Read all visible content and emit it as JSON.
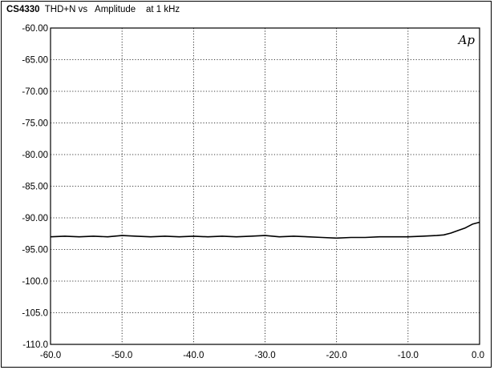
{
  "title": {
    "model": "CS4330",
    "text": "  THD+N vs   Amplitude    at 1 kHz"
  },
  "logo_text": "Ap",
  "colors": {
    "trace": "#000000",
    "grid": "#000000",
    "background": "#ffffff"
  },
  "chart_data": {
    "type": "line",
    "title": "CS4330  THD+N vs   Amplitude    at 1 kHz",
    "xlabel": "",
    "ylabel": "",
    "xlim": [
      -60,
      0
    ],
    "ylim": [
      -110,
      -60
    ],
    "x_ticks": [
      "-60.0",
      "-50.0",
      "-40.0",
      "-30.0",
      "-20.0",
      "-10.0",
      "0.0"
    ],
    "y_ticks": [
      "-60.00",
      "-65.00",
      "-70.00",
      "-75.00",
      "-80.00",
      "-85.00",
      "-90.00",
      "-95.00",
      "-100.0",
      "-105.0",
      "-110.0"
    ],
    "grid": true,
    "series": [
      {
        "x": [
          -60,
          -58,
          -56,
          -54,
          -52,
          -50,
          -48,
          -46,
          -44,
          -42,
          -40,
          -38,
          -36,
          -34,
          -32,
          -30,
          -28,
          -26,
          -24,
          -22,
          -20,
          -18,
          -16,
          -14,
          -12,
          -10,
          -8,
          -6,
          -5,
          -4,
          -3,
          -2,
          -1,
          0
        ],
        "y": [
          -93.0,
          -92.9,
          -93.0,
          -92.9,
          -93.0,
          -92.8,
          -92.9,
          -93.0,
          -92.9,
          -93.0,
          -92.9,
          -93.0,
          -92.9,
          -93.0,
          -92.9,
          -92.8,
          -93.0,
          -92.9,
          -93.0,
          -93.1,
          -93.2,
          -93.1,
          -93.1,
          -93.0,
          -93.0,
          -93.0,
          -92.9,
          -92.8,
          -92.7,
          -92.4,
          -92.0,
          -91.6,
          -91.0,
          -90.7
        ]
      }
    ]
  }
}
